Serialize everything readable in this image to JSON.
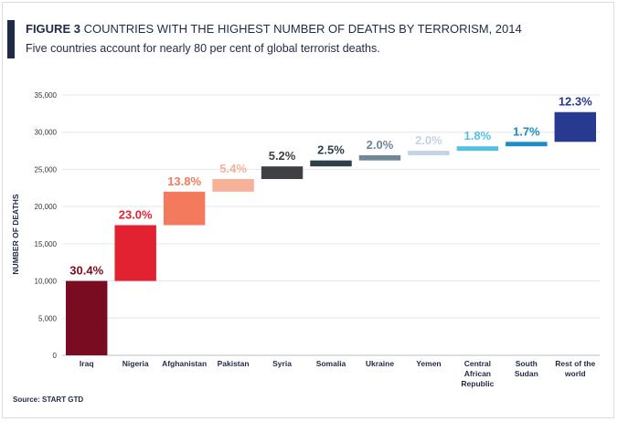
{
  "title_label": "FIGURE 3",
  "title_text": " COUNTRIES WITH THE HIGHEST NUMBER OF DEATHS BY TERRORISM, 2014",
  "subtitle": "Five countries account for nearly 80 per cent of global terrorist deaths.",
  "source": "Source: START GTD",
  "chart_data": {
    "type": "bar",
    "subtype": "waterfall",
    "ylabel": "NUMBER OF DEATHS",
    "ylim": [
      0,
      35000
    ],
    "yticks": [
      0,
      5000,
      10000,
      15000,
      20000,
      25000,
      30000,
      35000
    ],
    "ytick_labels": [
      "0",
      "5,000",
      "10,000",
      "15,000",
      "20,000",
      "25,000",
      "30,000",
      "35,000"
    ],
    "grid": true,
    "categories": [
      [
        "Iraq"
      ],
      [
        "Nigeria"
      ],
      [
        "Afghanistan"
      ],
      [
        "Pakistan"
      ],
      [
        "Syria"
      ],
      [
        "Somalia"
      ],
      [
        "Ukraine"
      ],
      [
        "Yemen"
      ],
      [
        "Central",
        "African",
        "Republic"
      ],
      [
        "South",
        "Sudan"
      ],
      [
        "Rest of the",
        "world"
      ]
    ],
    "starts": [
      0,
      10000,
      17500,
      22000,
      23700,
      25400,
      26200,
      26900,
      27500,
      28100,
      28700
    ],
    "ends": [
      10000,
      17500,
      22000,
      23700,
      25400,
      26200,
      26900,
      27500,
      28100,
      28700,
      32700
    ],
    "labels": [
      "30.4%",
      "23.0%",
      "13.8%",
      "5.4%",
      "5.2%",
      "2.5%",
      "2.0%",
      "2.0%",
      "1.8%",
      "1.7%",
      "12.3%"
    ],
    "colors": [
      "#7a0c22",
      "#e32231",
      "#f37a5c",
      "#f6b299",
      "#3f4043",
      "#2e3f48",
      "#6f8896",
      "#c3d3e6",
      "#52c1e8",
      "#1d8cc8",
      "#283a8f"
    ]
  }
}
